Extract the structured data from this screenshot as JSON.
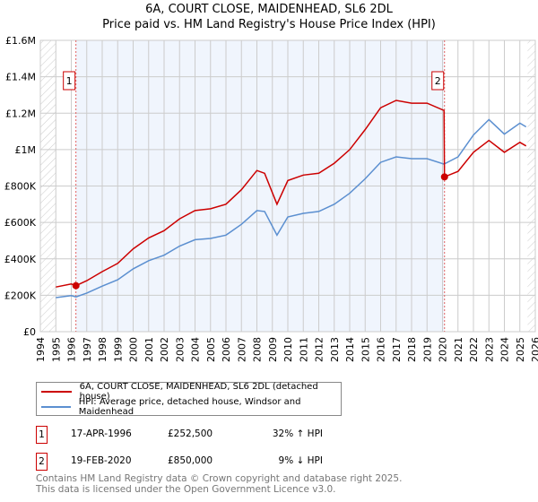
{
  "chart_data": {
    "type": "line",
    "title": "6A, COURT CLOSE, MAIDENHEAD, SL6 2DL",
    "subtitle": "Price paid vs. HM Land Registry's House Price Index (HPI)",
    "xlim": [
      1994,
      2026
    ],
    "ylim": [
      0,
      1600000
    ],
    "x_ticks": [
      "1994",
      "1995",
      "1996",
      "1997",
      "1998",
      "1999",
      "2000",
      "2001",
      "2002",
      "2003",
      "2004",
      "2005",
      "2006",
      "2007",
      "2008",
      "2009",
      "2010",
      "2011",
      "2012",
      "2013",
      "2014",
      "2015",
      "2016",
      "2017",
      "2018",
      "2019",
      "2020",
      "2021",
      "2022",
      "2023",
      "2024",
      "2025",
      "2026"
    ],
    "y_ticks": [
      {
        "v": 0,
        "label": "£0"
      },
      {
        "v": 200000,
        "label": "£200K"
      },
      {
        "v": 400000,
        "label": "£400K"
      },
      {
        "v": 600000,
        "label": "£600K"
      },
      {
        "v": 800000,
        "label": "£800K"
      },
      {
        "v": 1000000,
        "label": "£1M"
      },
      {
        "v": 1200000,
        "label": "£1.2M"
      },
      {
        "v": 1400000,
        "label": "£1.4M"
      },
      {
        "v": 1600000,
        "label": "£1.6M"
      }
    ],
    "grid": true,
    "series": [
      {
        "name": "6A, COURT CLOSE, MAIDENHEAD, SL6 2DL (detached house)",
        "color": "#cc0000",
        "x": [
          1995,
          1996,
          1996.3,
          1997,
          1998,
          1999,
          2000,
          2001,
          2002,
          2003,
          2004,
          2005,
          2006,
          2007,
          2008,
          2008.5,
          2009.3,
          2010,
          2011,
          2012,
          2013,
          2014,
          2015,
          2016,
          2017,
          2018,
          2019,
          2020.1,
          2020.13,
          2021,
          2022,
          2023,
          2024,
          2025,
          2025.4
        ],
        "values": [
          245000,
          262000,
          252500,
          280000,
          330000,
          375000,
          455000,
          515000,
          555000,
          620000,
          665000,
          675000,
          700000,
          780000,
          885000,
          870000,
          700000,
          830000,
          860000,
          870000,
          925000,
          1000000,
          1110000,
          1230000,
          1270000,
          1255000,
          1255000,
          1215000,
          850000,
          880000,
          985000,
          1050000,
          985000,
          1040000,
          1020000
        ]
      },
      {
        "name": "HPI: Average price, detached house, Windsor and Maidenhead",
        "color": "#5b8fd0",
        "x": [
          1995,
          1996,
          1996.3,
          1997,
          1998,
          1999,
          2000,
          2001,
          2002,
          2003,
          2004,
          2005,
          2006,
          2007,
          2008,
          2008.5,
          2009.3,
          2010,
          2011,
          2012,
          2013,
          2014,
          2015,
          2016,
          2017,
          2018,
          2019,
          2020.1,
          2021,
          2022,
          2023,
          2024,
          2025,
          2025.4
        ],
        "values": [
          187000,
          198000,
          191000,
          212000,
          250000,
          285000,
          345000,
          390000,
          420000,
          470000,
          505000,
          512000,
          530000,
          590000,
          665000,
          660000,
          530000,
          630000,
          650000,
          660000,
          700000,
          760000,
          840000,
          930000,
          960000,
          950000,
          950000,
          920000,
          960000,
          1080000,
          1165000,
          1085000,
          1145000,
          1125000
        ]
      }
    ],
    "sales": [
      {
        "n": "1",
        "x": 1996.3,
        "v": 252500
      },
      {
        "n": "2",
        "x": 2020.13,
        "v": 850000
      }
    ],
    "legend_placement": "below"
  },
  "table": [
    {
      "n": "1",
      "date": "17-APR-1996",
      "price": "£252,500",
      "hpi": "32% ↑ HPI"
    },
    {
      "n": "2",
      "date": "19-FEB-2020",
      "price": "£850,000",
      "hpi": "9% ↓ HPI"
    }
  ],
  "footer": [
    "Contains HM Land Registry data © Crown copyright and database right 2025.",
    "This data is licensed under the Open Government Licence v3.0."
  ]
}
